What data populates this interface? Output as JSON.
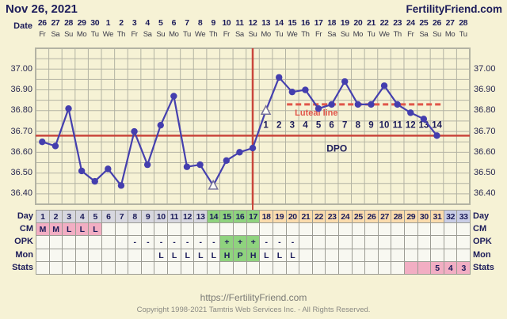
{
  "header": {
    "title": "Nov 26, 2021",
    "site": "FertilityFriend.com"
  },
  "date_axis": {
    "label": "Date",
    "dates": [
      "26",
      "27",
      "28",
      "29",
      "30",
      "1",
      "2",
      "3",
      "4",
      "5",
      "6",
      "7",
      "8",
      "9",
      "10",
      "11",
      "12",
      "13",
      "14",
      "15",
      "16",
      "17",
      "18",
      "19",
      "20",
      "21",
      "22",
      "23",
      "24",
      "25",
      "26",
      "27",
      "28"
    ],
    "weekdays": [
      "Fr",
      "Sa",
      "Su",
      "Mo",
      "Tu",
      "We",
      "Th",
      "Fr",
      "Sa",
      "Su",
      "Mo",
      "Tu",
      "We",
      "Th",
      "Fr",
      "Sa",
      "Su",
      "Mo",
      "Tu",
      "We",
      "Th",
      "Fr",
      "Sa",
      "Su",
      "Mo",
      "Tu",
      "We",
      "Th",
      "Fr",
      "Sa",
      "Su",
      "Mo",
      "Tu"
    ]
  },
  "chart_data": {
    "type": "line",
    "title": "Basal body temperature by cycle day (°C)",
    "x_days": [
      1,
      2,
      3,
      4,
      5,
      6,
      7,
      8,
      9,
      10,
      11,
      12,
      13,
      14,
      15,
      16,
      17,
      18,
      19,
      20,
      21,
      22,
      23,
      24,
      25,
      26,
      27,
      28,
      29,
      30,
      31,
      32,
      33
    ],
    "temps": [
      36.65,
      36.63,
      36.81,
      36.51,
      36.46,
      36.52,
      36.44,
      36.7,
      36.54,
      36.73,
      36.87,
      36.53,
      36.54,
      36.44,
      36.56,
      36.6,
      36.62,
      36.8,
      36.96,
      36.89,
      36.9,
      36.81,
      36.83,
      36.94,
      36.83,
      36.83,
      36.92,
      36.83,
      36.79,
      36.76,
      36.68,
      null,
      null
    ],
    "open_triangle_days": [
      14,
      18
    ],
    "y_ticks": [
      37.0,
      36.9,
      36.8,
      36.7,
      36.6,
      36.5,
      36.4
    ],
    "y_tick_labels": [
      "37.00",
      "36.90",
      "36.80",
      "36.70",
      "36.60",
      "36.50",
      "36.40"
    ],
    "ylim": [
      36.35,
      37.1
    ],
    "grid_step": 0.05,
    "coverline_value": 36.68,
    "ovulation_day": 17,
    "luteal_line": {
      "value": 36.83,
      "start_day": 19.6,
      "end_day": 31.4,
      "label": "Luteal line"
    },
    "dpo_start_day": 18,
    "dpo_labels": [
      "1",
      "2",
      "3",
      "4",
      "5",
      "6",
      "7",
      "8",
      "9",
      "10",
      "11",
      "12",
      "13",
      "14"
    ],
    "dpo_axis_label": "DPO",
    "colors": {
      "line": "#4540ae",
      "point": "#443eae",
      "marker_stroke": "#76719a",
      "marker_fill": "#fdfdf5",
      "coverline": "#c9463c",
      "ovulation_line": "#c9463c",
      "luteal": "#e0564a",
      "grid": "#b3b3a3",
      "text_navy": "#1c1c5a"
    }
  },
  "table": {
    "row_labels": [
      "Day",
      "CM",
      "OPK",
      "Mon",
      "Stats"
    ],
    "colors": {
      "gray": "#d7d7df",
      "green": "#8fd37e",
      "peach": "#fbdcad",
      "lavender": "#c9cde6",
      "pink": "#f2aec3",
      "plain": "#f8f8f1"
    },
    "rows": [
      {
        "name": "Day",
        "values": [
          "1",
          "2",
          "3",
          "4",
          "5",
          "6",
          "7",
          "8",
          "9",
          "10",
          "11",
          "12",
          "13",
          "14",
          "15",
          "16",
          "17",
          "18",
          "19",
          "20",
          "21",
          "22",
          "23",
          "24",
          "25",
          "26",
          "27",
          "28",
          "29",
          "30",
          "31",
          "32",
          "33"
        ],
        "bg": [
          "gray",
          "gray",
          "gray",
          "gray",
          "gray",
          "gray",
          "gray",
          "gray",
          "gray",
          "gray",
          "gray",
          "gray",
          "gray",
          "green",
          "green",
          "green",
          "green",
          "peach",
          "peach",
          "peach",
          "peach",
          "peach",
          "peach",
          "peach",
          "peach",
          "peach",
          "peach",
          "peach",
          "peach",
          "peach",
          "peach",
          "lavender",
          "lavender"
        ]
      },
      {
        "name": "CM",
        "values": [
          "M",
          "M",
          "L",
          "L",
          "L",
          "",
          "",
          "",
          "",
          "",
          "",
          "",
          "",
          "",
          "",
          "",
          "",
          "",
          "",
          "",
          "",
          "",
          "",
          "",
          "",
          "",
          "",
          "",
          "",
          "",
          "",
          "",
          ""
        ],
        "bg": [
          "pink",
          "pink",
          "pink",
          "pink",
          "pink",
          "plain",
          "plain",
          "plain",
          "plain",
          "plain",
          "plain",
          "plain",
          "plain",
          "plain",
          "plain",
          "plain",
          "plain",
          "plain",
          "plain",
          "plain",
          "plain",
          "plain",
          "plain",
          "plain",
          "plain",
          "plain",
          "plain",
          "plain",
          "plain",
          "plain",
          "plain",
          "plain",
          "plain"
        ]
      },
      {
        "name": "OPK",
        "values": [
          "",
          "",
          "",
          "",
          "",
          "",
          "",
          "-",
          "-",
          "-",
          "-",
          "-",
          "-",
          "-",
          "+",
          "+",
          "+",
          "-",
          "-",
          "-",
          "",
          "",
          "",
          "",
          "",
          "",
          "",
          "",
          "",
          "",
          "",
          "",
          ""
        ],
        "bg": [
          "plain",
          "plain",
          "plain",
          "plain",
          "plain",
          "plain",
          "plain",
          "plain",
          "plain",
          "plain",
          "plain",
          "plain",
          "plain",
          "plain",
          "green",
          "green",
          "green",
          "plain",
          "plain",
          "plain",
          "plain",
          "plain",
          "plain",
          "plain",
          "plain",
          "plain",
          "plain",
          "plain",
          "plain",
          "plain",
          "plain",
          "plain",
          "plain"
        ]
      },
      {
        "name": "Mon",
        "values": [
          "",
          "",
          "",
          "",
          "",
          "",
          "",
          "",
          "",
          "L",
          "L",
          "L",
          "L",
          "L",
          "H",
          "P",
          "H",
          "L",
          "L",
          "L",
          "",
          "",
          "",
          "",
          "",
          "",
          "",
          "",
          "",
          "",
          "",
          "",
          ""
        ],
        "bg": [
          "plain",
          "plain",
          "plain",
          "plain",
          "plain",
          "plain",
          "plain",
          "plain",
          "plain",
          "plain",
          "plain",
          "plain",
          "plain",
          "plain",
          "green",
          "green",
          "green",
          "plain",
          "plain",
          "plain",
          "plain",
          "plain",
          "plain",
          "plain",
          "plain",
          "plain",
          "plain",
          "plain",
          "plain",
          "plain",
          "plain",
          "plain",
          "plain"
        ]
      },
      {
        "name": "Stats",
        "values": [
          "",
          "",
          "",
          "",
          "",
          "",
          "",
          "",
          "",
          "",
          "",
          "",
          "",
          "",
          "",
          "",
          "",
          "",
          "",
          "",
          "",
          "",
          "",
          "",
          "",
          "",
          "",
          "",
          "",
          "",
          "5",
          "4",
          "3"
        ],
        "bg": [
          "plain",
          "plain",
          "plain",
          "plain",
          "plain",
          "plain",
          "plain",
          "plain",
          "plain",
          "plain",
          "plain",
          "plain",
          "plain",
          "plain",
          "plain",
          "plain",
          "plain",
          "plain",
          "plain",
          "plain",
          "plain",
          "plain",
          "plain",
          "plain",
          "plain",
          "plain",
          "plain",
          "plain",
          "pink",
          "pink",
          "pink",
          "pink",
          "pink"
        ]
      }
    ]
  },
  "footer": {
    "url": "https://FertilityFriend.com",
    "copyright": "Copyright 1998-2021 Tamtris Web Services Inc. - All Rights Reserved."
  }
}
